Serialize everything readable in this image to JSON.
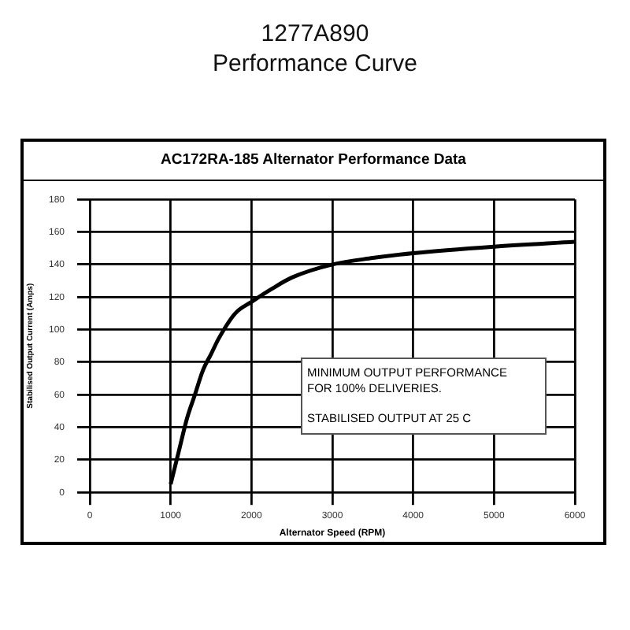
{
  "chart_data": {
    "type": "line",
    "title": "1277A890",
    "subtitle": "Performance Curve",
    "xlabel": "Alternator Speed (RPM)",
    "ylabel": "Stabilised Output Current (Amps)",
    "annotations": [
      "AC172RA-185 Alternator Performance Data",
      "MINIMUM OUTPUT PERFORMANCE",
      "FOR 100% DELIVERIES.",
      "STABILISED OUTPUT AT 25 C"
    ],
    "series": [
      {
        "color": "#000000",
        "x": [
          1000,
          1100,
          1200,
          1300,
          1400,
          1500,
          1600,
          1800,
          2000,
          2250,
          2500,
          3000,
          3500,
          4000,
          5000,
          6000
        ],
        "values": [
          5,
          25,
          45,
          60,
          75,
          85,
          95,
          110,
          117,
          125,
          132,
          140,
          144,
          147,
          151,
          154
        ]
      }
    ],
    "xlim": [
      0,
      6000
    ],
    "xticks": [
      0,
      1000,
      2000,
      3000,
      4000,
      5000,
      6000
    ],
    "ylim": [
      0,
      180
    ],
    "yticks": [
      0,
      20,
      40,
      60,
      80,
      100,
      120,
      140,
      160,
      180
    ],
    "grid": true,
    "marker": "none",
    "line_style": "solid"
  }
}
